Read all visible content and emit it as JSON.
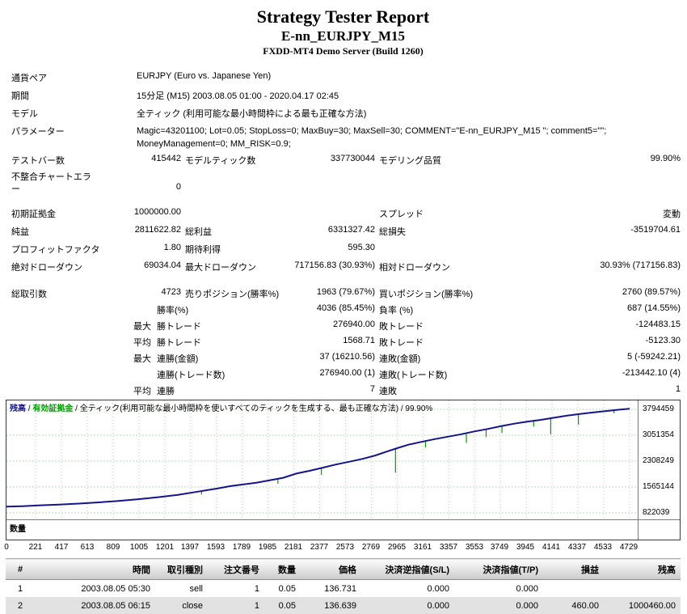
{
  "report": {
    "title": "Strategy Tester Report",
    "expert_name": "E-nn_EURJPY_M15",
    "server": "FXDD-MT4 Demo Server (Build 1260)"
  },
  "summary": {
    "symbol_label": "通貨ペア",
    "symbol_value": "EURJPY (Euro vs. Japanese Yen)",
    "period_label": "期間",
    "period_value": "15分足 (M15) 2003.08.05 01:00 - 2020.04.17 02:45",
    "model_label": "モデル",
    "model_value": "全ティック (利用可能な最小時間枠による最も正確な方法)",
    "params_label": "パラメーター",
    "params_value": "Magic=43201100; Lot=0.05; StopLoss=0; MaxBuy=30; MaxSell=30; COMMENT=\"E-nn_EURJPY_M15 \"; comment5=\"\"; MoneyManagement=0; MM_RISK=0.9;",
    "bars_label": "テストバー数",
    "bars_value": "415442",
    "ticks_label": "モデルティック数",
    "ticks_value": "337730044",
    "quality_label": "モデリング品質",
    "quality_value": "99.90%",
    "mismatch_label": "不整合チャートエラー",
    "mismatch_value": "0",
    "deposit_label": "初期証拠金",
    "deposit_value": "1000000.00",
    "spread_label": "スプレッド",
    "spread_value": "変動",
    "net_label": "純益",
    "net_value": "2811622.82",
    "gross_profit_label": "総利益",
    "gross_profit_value": "6331327.42",
    "gross_loss_label": "総損失",
    "gross_loss_value": "-3519704.61",
    "pf_label": "プロフィットファクタ",
    "pf_value": "1.80",
    "payoff_label": "期待利得",
    "payoff_value": "595.30",
    "abs_dd_label": "絶対ドローダウン",
    "abs_dd_value": "69034.04",
    "max_dd_label": "最大ドローダウン",
    "max_dd_value": "717156.83 (30.93%)",
    "rel_dd_label": "相対ドローダウン",
    "rel_dd_value": "30.93% (717156.83)",
    "total_trades_label": "総取引数",
    "total_trades_value": "4723",
    "short_label": "売りポジション(勝率%)",
    "short_value": "1963 (79.67%)",
    "long_label": "買いポジション(勝率%)",
    "long_value": "2760 (89.57%)",
    "win_label": "勝率(%)",
    "win_value": "4036 (85.45%)",
    "loss_label": "負率 (%)",
    "loss_value": "687 (14.55%)",
    "max_label": "最大",
    "avg_label": "平均",
    "profit_trade_label": "勝トレード",
    "loss_trade_label": "敗トレード",
    "largest_profit": "276940.00",
    "largest_loss": "-124483.15",
    "avg_profit": "1568.71",
    "avg_loss": "-5123.30",
    "consec_win_money_label": "連勝(金額)",
    "consec_win_money": "37 (16210.56)",
    "consec_loss_money_label": "連敗(金額)",
    "consec_loss_money": "5 (-59242.21)",
    "consec_win_count_label": "連勝(トレード数)",
    "consec_win_count": "276940.00 (1)",
    "consec_loss_count_label": "連敗(トレード数)",
    "consec_loss_count": "-213442.10 (4)",
    "avg_consec_win_label": "連勝",
    "avg_consec_win": "7",
    "avg_consec_loss_label": "連敗",
    "avg_consec_loss": "1"
  },
  "chart_data": {
    "type": "line",
    "legend": {
      "balance_label": "残高",
      "sep": " / ",
      "equity_label": "有効証拠金",
      "model_note": "全ティック(利用可能な最小時間枠を使いすべてのティックを生成する、最も正確な方法)",
      "quality": "99.90%"
    },
    "volume_label": "数量",
    "xlabel": "",
    "ylabel": "",
    "y_ticks": [
      3794459,
      3051354,
      2308249,
      1565144,
      822039
    ],
    "x_ticks": [
      0,
      221,
      417,
      613,
      809,
      1005,
      1201,
      1397,
      1593,
      1789,
      1985,
      2181,
      2377,
      2573,
      2769,
      2965,
      3161,
      3357,
      3553,
      3749,
      3945,
      4141,
      4337,
      4533,
      4729
    ],
    "y_range": [
      636263,
      4049901
    ],
    "x_range": [
      0,
      4790
    ],
    "grid_on": true,
    "grid_color": "#abdcab",
    "initial_deposit": 1000000,
    "final_balance": 3811622.82,
    "series": [
      {
        "name": "残高",
        "color": "#14148c",
        "points": [
          [
            0,
            1000000
          ],
          [
            120,
            1015000
          ],
          [
            260,
            1040000
          ],
          [
            400,
            1062000
          ],
          [
            550,
            1090000
          ],
          [
            700,
            1125000
          ],
          [
            850,
            1165000
          ],
          [
            1000,
            1215000
          ],
          [
            1150,
            1272000
          ],
          [
            1300,
            1340000
          ],
          [
            1450,
            1430000
          ],
          [
            1600,
            1520000
          ],
          [
            1700,
            1590000
          ],
          [
            1800,
            1640000
          ],
          [
            1900,
            1690000
          ],
          [
            2000,
            1760000
          ],
          [
            2100,
            1830000
          ],
          [
            2200,
            1950000
          ],
          [
            2300,
            2030000
          ],
          [
            2400,
            2120000
          ],
          [
            2500,
            2210000
          ],
          [
            2600,
            2290000
          ],
          [
            2700,
            2370000
          ],
          [
            2800,
            2470000
          ],
          [
            2900,
            2600000
          ],
          [
            2965,
            2680000
          ],
          [
            3050,
            2780000
          ],
          [
            3150,
            2860000
          ],
          [
            3250,
            2940000
          ],
          [
            3350,
            3010000
          ],
          [
            3450,
            3080000
          ],
          [
            3550,
            3160000
          ],
          [
            3650,
            3230000
          ],
          [
            3750,
            3310000
          ],
          [
            3850,
            3380000
          ],
          [
            3950,
            3440000
          ],
          [
            4050,
            3490000
          ],
          [
            4150,
            3550000
          ],
          [
            4250,
            3610000
          ],
          [
            4350,
            3660000
          ],
          [
            4450,
            3705000
          ],
          [
            4550,
            3745000
          ],
          [
            4650,
            3785000
          ],
          [
            4729,
            3811623
          ]
        ]
      },
      {
        "name": "有効証拠金",
        "color": "#00a000",
        "spikes": [
          [
            1480,
            1350000
          ],
          [
            2060,
            1660000
          ],
          [
            2390,
            1910000
          ],
          [
            2952,
            1975000
          ],
          [
            3180,
            2700000
          ],
          [
            3490,
            2830000
          ],
          [
            3640,
            3000000
          ],
          [
            3760,
            3120000
          ],
          [
            4000,
            3300000
          ],
          [
            4130,
            3080000
          ],
          [
            4340,
            3350000
          ],
          [
            4610,
            3680000
          ]
        ]
      }
    ]
  },
  "trades": {
    "headers": [
      "#",
      "時間",
      "取引種別",
      "注文番号",
      "数量",
      "価格",
      "決済逆指値(S/L)",
      "決済指値(T/P)",
      "損益",
      "残高"
    ],
    "rows": [
      [
        "1",
        "2003.08.05 05:30",
        "sell",
        "1",
        "0.05",
        "136.731",
        "0.000",
        "0.000",
        "",
        ""
      ],
      [
        "2",
        "2003.08.05 06:15",
        "close",
        "1",
        "0.05",
        "136.639",
        "0.000",
        "0.000",
        "460.00",
        "1000460.00"
      ]
    ]
  }
}
